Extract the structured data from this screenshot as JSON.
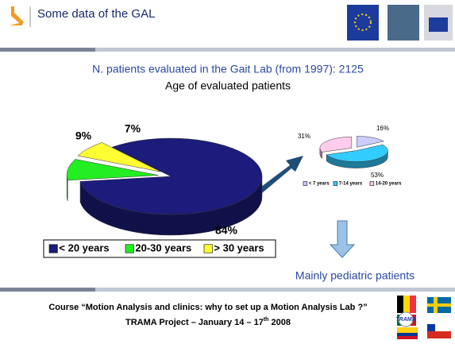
{
  "header": {
    "title": "Some data of the GAL"
  },
  "subtitle": "N. patients evaluated in the Gait Lab  (from 1997): 2125",
  "chart_data": [
    {
      "type": "pie",
      "title": "Age of evaluated patients",
      "categories": [
        "< 20 years",
        "20-30 years",
        "> 30 years"
      ],
      "values": [
        84,
        9,
        7
      ],
      "value_labels": [
        "84%",
        "9%",
        "7%"
      ],
      "colors": [
        "#1c1c7c",
        "#22ee22",
        "#ffff33"
      ],
      "legend": "bottom"
    },
    {
      "type": "pie",
      "categories": [
        "< 7 years",
        "7-14 years",
        "14-20 years"
      ],
      "values": [
        16,
        53,
        31
      ],
      "value_labels": [
        "16%",
        "53%",
        "31%"
      ],
      "colors": [
        "#ccccff",
        "#33ccff",
        "#ffccee"
      ],
      "legend": "bottom"
    }
  ],
  "note": "Mainly  pediatric patients",
  "footer": {
    "line1": "Course “Motion Analysis and clinics: why to set up a Motion Analysis Lab ?”",
    "line2": "TRAMA Project – January 14 – 17",
    "superscript": "th",
    "year": " 2008",
    "logo": "TRAMA"
  }
}
